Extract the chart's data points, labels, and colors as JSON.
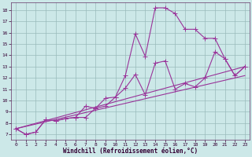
{
  "xlabel": "Windchill (Refroidissement éolien,°C)",
  "bg_color": "#cce8e8",
  "grid_color": "#99bbbb",
  "line_color": "#993399",
  "spine_color": "#663366",
  "tick_color": "#330033",
  "xlim": [
    -0.5,
    23.5
  ],
  "ylim": [
    6.5,
    18.7
  ],
  "xticks": [
    0,
    1,
    2,
    3,
    4,
    5,
    6,
    7,
    8,
    9,
    10,
    11,
    12,
    13,
    14,
    15,
    16,
    17,
    18,
    19,
    20,
    21,
    22,
    23
  ],
  "yticks": [
    7,
    8,
    9,
    10,
    11,
    12,
    13,
    14,
    15,
    16,
    17,
    18
  ],
  "line1_x": [
    0,
    1,
    2,
    3,
    4,
    5,
    6,
    7,
    8,
    9,
    10,
    11,
    12,
    13,
    14,
    15,
    16,
    17,
    18,
    19,
    20,
    21,
    22,
    23
  ],
  "line1_y": [
    7.5,
    7.0,
    7.2,
    8.3,
    8.2,
    8.4,
    8.5,
    9.5,
    9.3,
    9.5,
    10.3,
    12.2,
    15.9,
    13.9,
    18.2,
    18.2,
    17.7,
    16.3,
    16.3,
    15.5,
    15.5,
    13.7,
    12.2,
    13.0
  ],
  "line2_x": [
    0,
    1,
    2,
    3,
    4,
    5,
    6,
    7,
    8,
    9,
    10,
    11,
    12,
    13,
    14,
    15,
    16,
    17,
    18,
    19,
    20,
    21,
    22,
    23
  ],
  "line2_y": [
    7.5,
    7.0,
    7.2,
    8.3,
    8.2,
    8.4,
    8.5,
    8.5,
    9.3,
    10.2,
    10.3,
    11.1,
    12.3,
    10.5,
    13.3,
    13.5,
    11.0,
    11.5,
    11.2,
    12.0,
    14.3,
    13.7,
    12.2,
    13.0
  ],
  "line3_x": [
    0,
    23
  ],
  "line3_y": [
    7.5,
    13.0
  ],
  "line4_x": [
    0,
    23
  ],
  "line4_y": [
    7.5,
    12.2
  ],
  "marker_size": 4,
  "line_width": 0.8
}
